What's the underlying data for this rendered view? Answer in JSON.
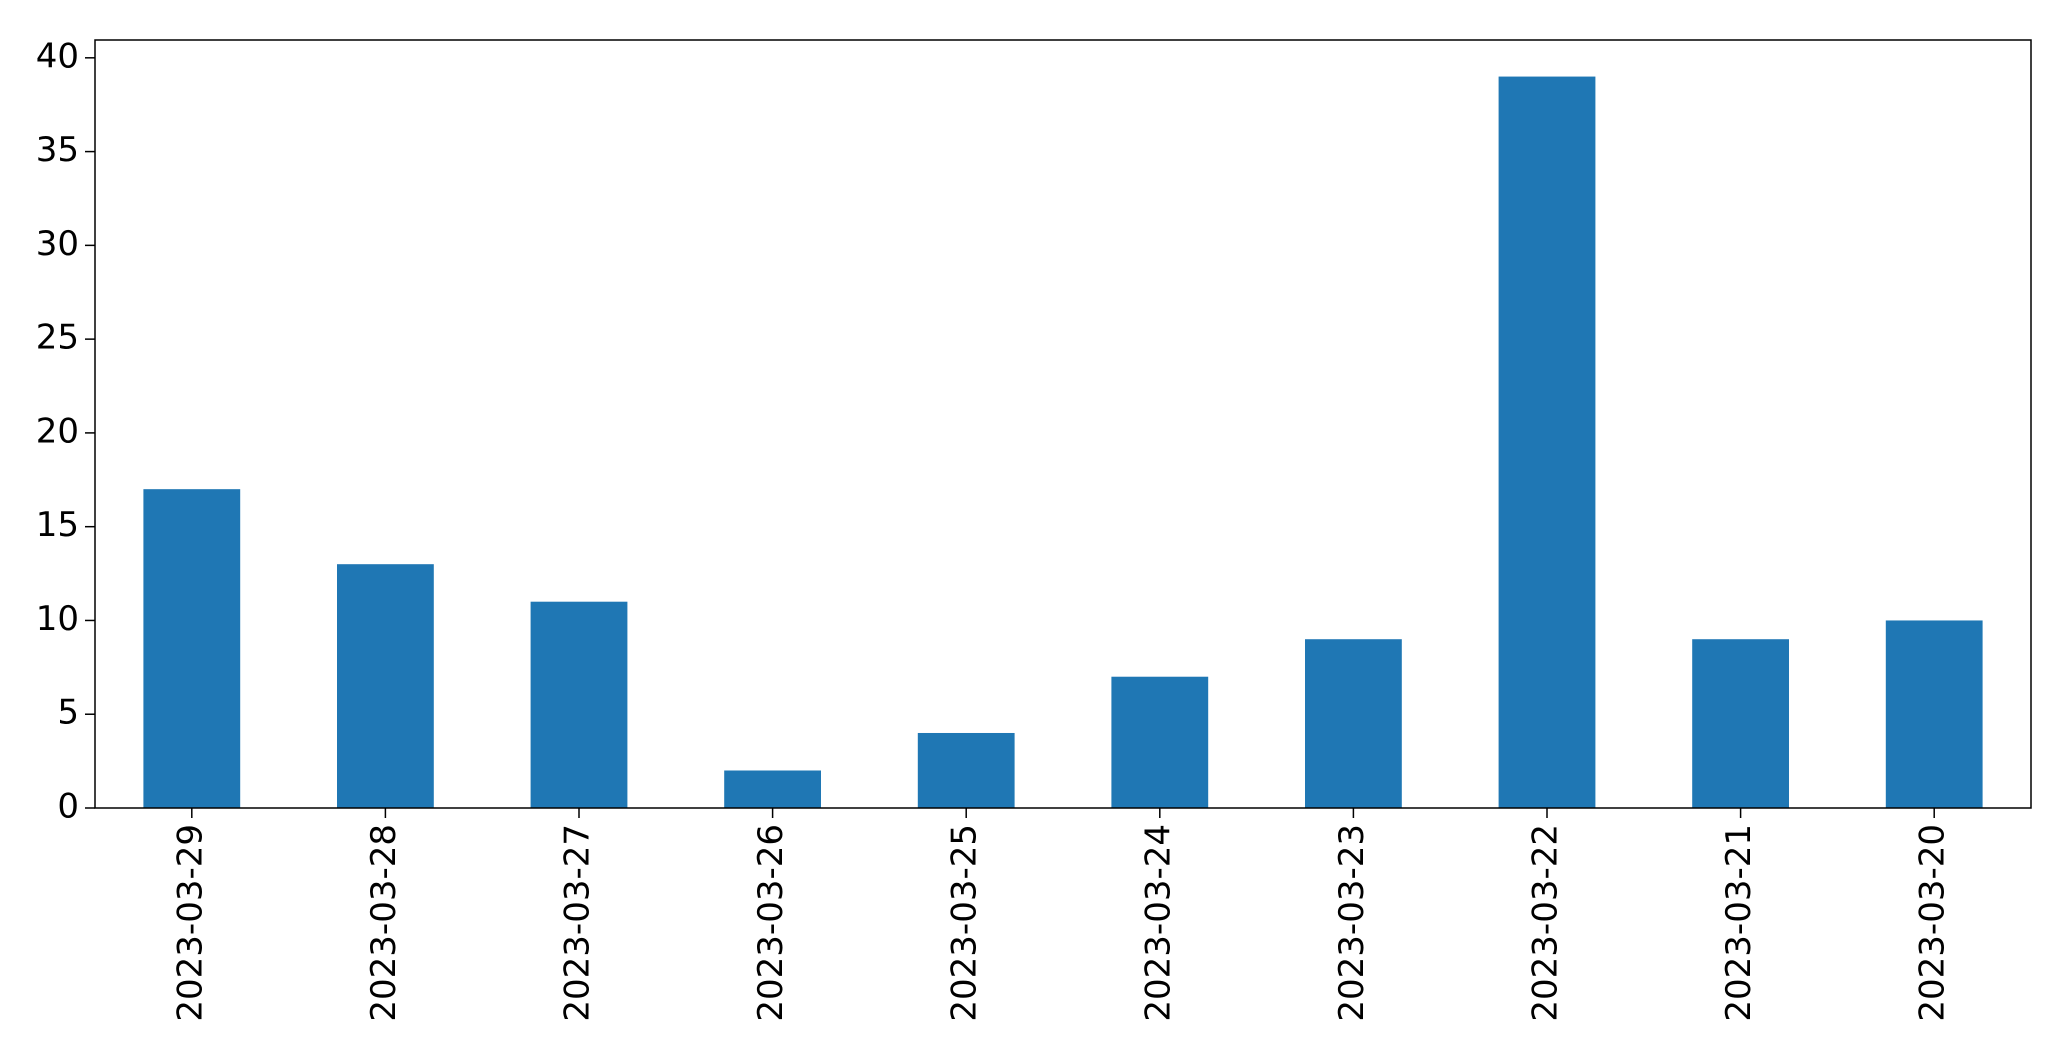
{
  "chart_data": {
    "type": "bar",
    "categories": [
      "2023-03-29",
      "2023-03-28",
      "2023-03-27",
      "2023-03-26",
      "2023-03-25",
      "2023-03-24",
      "2023-03-23",
      "2023-03-22",
      "2023-03-21",
      "2023-03-20"
    ],
    "values": [
      17,
      13,
      11,
      2,
      4,
      7,
      9,
      39,
      9,
      10
    ],
    "color": "#1f77b4",
    "ylim": [
      0,
      40.95
    ],
    "yticks": [
      0,
      5,
      10,
      15,
      20,
      25,
      30,
      35,
      40
    ],
    "grid": false
  }
}
